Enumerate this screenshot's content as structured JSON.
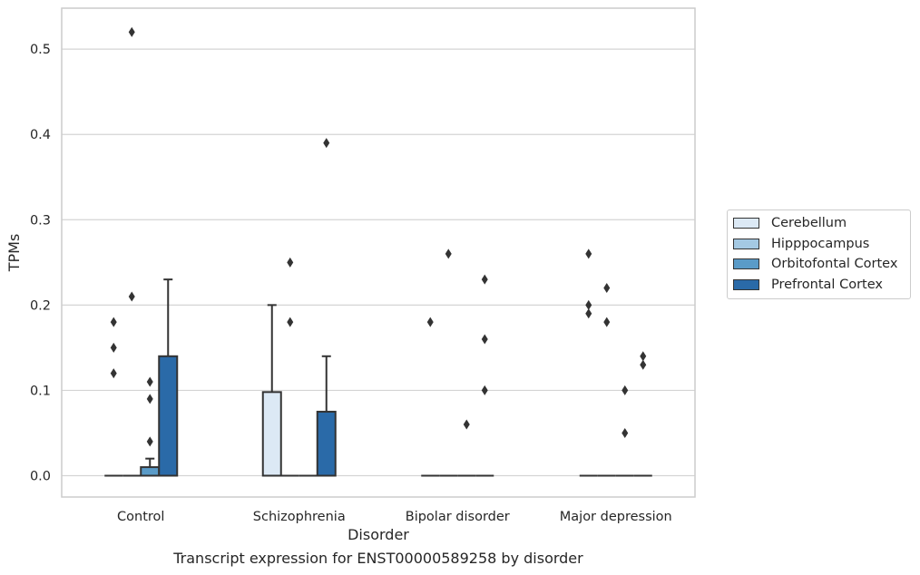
{
  "caption": "Transcript expression for ENST00000589258 by disorder",
  "chart_data": {
    "type": "box",
    "xlabel": "Disorder",
    "ylabel": "TPMs",
    "ylim": [
      -0.025,
      0.548
    ],
    "yticks": [
      "0.0",
      "0.1",
      "0.2",
      "0.3",
      "0.4",
      "0.5"
    ],
    "ytick_values": [
      0.0,
      0.1,
      0.2,
      0.3,
      0.4,
      0.5
    ],
    "grid": "horizontal",
    "legend_position": "right",
    "categories": [
      "Control",
      "Schizophrenia",
      "Bipolar disorder",
      "Major depression"
    ],
    "series": [
      {
        "name": "Cerebellum",
        "color": "#dce9f5",
        "boxes": [
          {
            "q1": 0,
            "median": 0,
            "q3": 0,
            "whisker_low": 0,
            "whisker_high": 0,
            "outliers": [
              0.12,
              0.15,
              0.18
            ]
          },
          {
            "q1": 0,
            "median": 0,
            "q3": 0.098,
            "whisker_low": 0,
            "whisker_high": 0.2,
            "outliers": []
          },
          {
            "q1": 0,
            "median": 0,
            "q3": 0,
            "whisker_low": 0,
            "whisker_high": 0,
            "outliers": [
              0.18
            ]
          },
          {
            "q1": 0,
            "median": 0,
            "q3": 0,
            "whisker_low": 0,
            "whisker_high": 0,
            "outliers": [
              0.19,
              0.2,
              0.26
            ]
          }
        ]
      },
      {
        "name": "Hipppocampus",
        "color": "#a4c9e3",
        "boxes": [
          {
            "q1": 0,
            "median": 0,
            "q3": 0,
            "whisker_low": 0,
            "whisker_high": 0,
            "outliers": [
              0.21,
              0.52
            ]
          },
          {
            "q1": 0,
            "median": 0,
            "q3": 0,
            "whisker_low": 0,
            "whisker_high": 0,
            "outliers": [
              0.18,
              0.25
            ]
          },
          {
            "q1": 0,
            "median": 0,
            "q3": 0,
            "whisker_low": 0,
            "whisker_high": 0,
            "outliers": [
              0.26
            ]
          },
          {
            "q1": 0,
            "median": 0,
            "q3": 0,
            "whisker_low": 0,
            "whisker_high": 0,
            "outliers": [
              0.18,
              0.22
            ]
          }
        ]
      },
      {
        "name": "Orbitofontal Cortex",
        "color": "#5a9bc8",
        "boxes": [
          {
            "q1": 0,
            "median": 0,
            "q3": 0.01,
            "whisker_low": 0,
            "whisker_high": 0.02,
            "outliers": [
              0.04,
              0.09,
              0.11
            ]
          },
          {
            "q1": 0,
            "median": 0,
            "q3": 0,
            "whisker_low": 0,
            "whisker_high": 0,
            "outliers": []
          },
          {
            "q1": 0,
            "median": 0,
            "q3": 0,
            "whisker_low": 0,
            "whisker_high": 0,
            "outliers": [
              0.06
            ]
          },
          {
            "q1": 0,
            "median": 0,
            "q3": 0,
            "whisker_low": 0,
            "whisker_high": 0,
            "outliers": [
              0.05,
              0.1
            ]
          }
        ]
      },
      {
        "name": "Prefrontal Cortex",
        "color": "#2a6aa8",
        "boxes": [
          {
            "q1": 0,
            "median": 0,
            "q3": 0.14,
            "whisker_low": 0,
            "whisker_high": 0.23,
            "outliers": []
          },
          {
            "q1": 0,
            "median": 0,
            "q3": 0.075,
            "whisker_low": 0,
            "whisker_high": 0.14,
            "outliers": [
              0.39
            ]
          },
          {
            "q1": 0,
            "median": 0,
            "q3": 0,
            "whisker_low": 0,
            "whisker_high": 0,
            "outliers": [
              0.1,
              0.16,
              0.23
            ]
          },
          {
            "q1": 0,
            "median": 0,
            "q3": 0,
            "whisker_low": 0,
            "whisker_high": 0,
            "outliers": [
              0.13,
              0.14
            ]
          }
        ]
      }
    ]
  }
}
